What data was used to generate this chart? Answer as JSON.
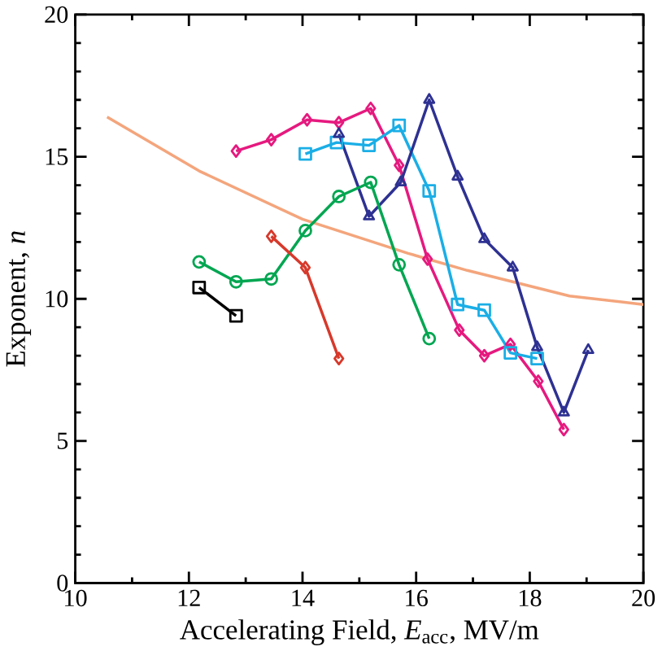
{
  "chart_data": {
    "type": "line",
    "xlabel": "Accelerating Field, *E*$_{acc}$, MV/m",
    "ylabel": "Exponent, *n*",
    "xlim": [
      10,
      20
    ],
    "ylim": [
      0,
      20
    ],
    "xticks": [
      10,
      12,
      14,
      16,
      18,
      20
    ],
    "yticks": [
      0,
      5,
      10,
      15,
      20
    ],
    "series": [
      {
        "color": "#f4a57c",
        "marker": "none",
        "x": [
          10.56,
          12.18,
          14.0,
          15.86,
          16.9,
          18.7,
          20.0
        ],
        "values": [
          16.4,
          14.5,
          12.8,
          11.6,
          11.0,
          10.1,
          9.8
        ]
      },
      {
        "color": "#e6197f",
        "marker": "diamond",
        "x": [
          12.83,
          13.45,
          14.08,
          14.64,
          15.2,
          15.7,
          16.2,
          16.76,
          17.2,
          17.66,
          18.15,
          18.6
        ],
        "values": [
          15.2,
          15.6,
          16.3,
          16.2,
          16.7,
          14.7,
          11.4,
          8.9,
          8.0,
          8.4,
          7.1,
          5.4
        ]
      },
      {
        "color": "#1aaee6",
        "marker": "square",
        "x": [
          14.05,
          14.6,
          15.17,
          15.7,
          16.23,
          16.73,
          17.2,
          17.66,
          18.13
        ],
        "values": [
          15.1,
          15.5,
          15.4,
          16.1,
          13.8,
          9.8,
          9.6,
          8.1,
          7.9
        ]
      },
      {
        "color": "#2e3192",
        "marker": "triangle",
        "x": [
          14.64,
          15.17,
          15.73,
          16.23,
          16.73,
          17.2,
          17.7,
          18.13,
          18.6,
          19.03
        ],
        "values": [
          15.8,
          12.9,
          14.1,
          17.0,
          14.3,
          12.1,
          11.1,
          8.3,
          6.0,
          8.2
        ]
      },
      {
        "color": "#00a651",
        "marker": "circle",
        "x": [
          12.18,
          12.83,
          13.45,
          14.05,
          14.64,
          15.2,
          15.7,
          16.23
        ],
        "values": [
          11.3,
          10.6,
          10.7,
          12.4,
          13.6,
          14.1,
          11.2,
          8.6
        ]
      },
      {
        "color": "#d7392b",
        "marker": "diamond",
        "x": [
          13.45,
          14.05,
          14.64
        ],
        "values": [
          12.2,
          11.1,
          7.9
        ]
      },
      {
        "color": "#000000",
        "marker": "square",
        "x": [
          12.18,
          12.83
        ],
        "values": [
          10.4,
          9.4
        ]
      }
    ]
  }
}
